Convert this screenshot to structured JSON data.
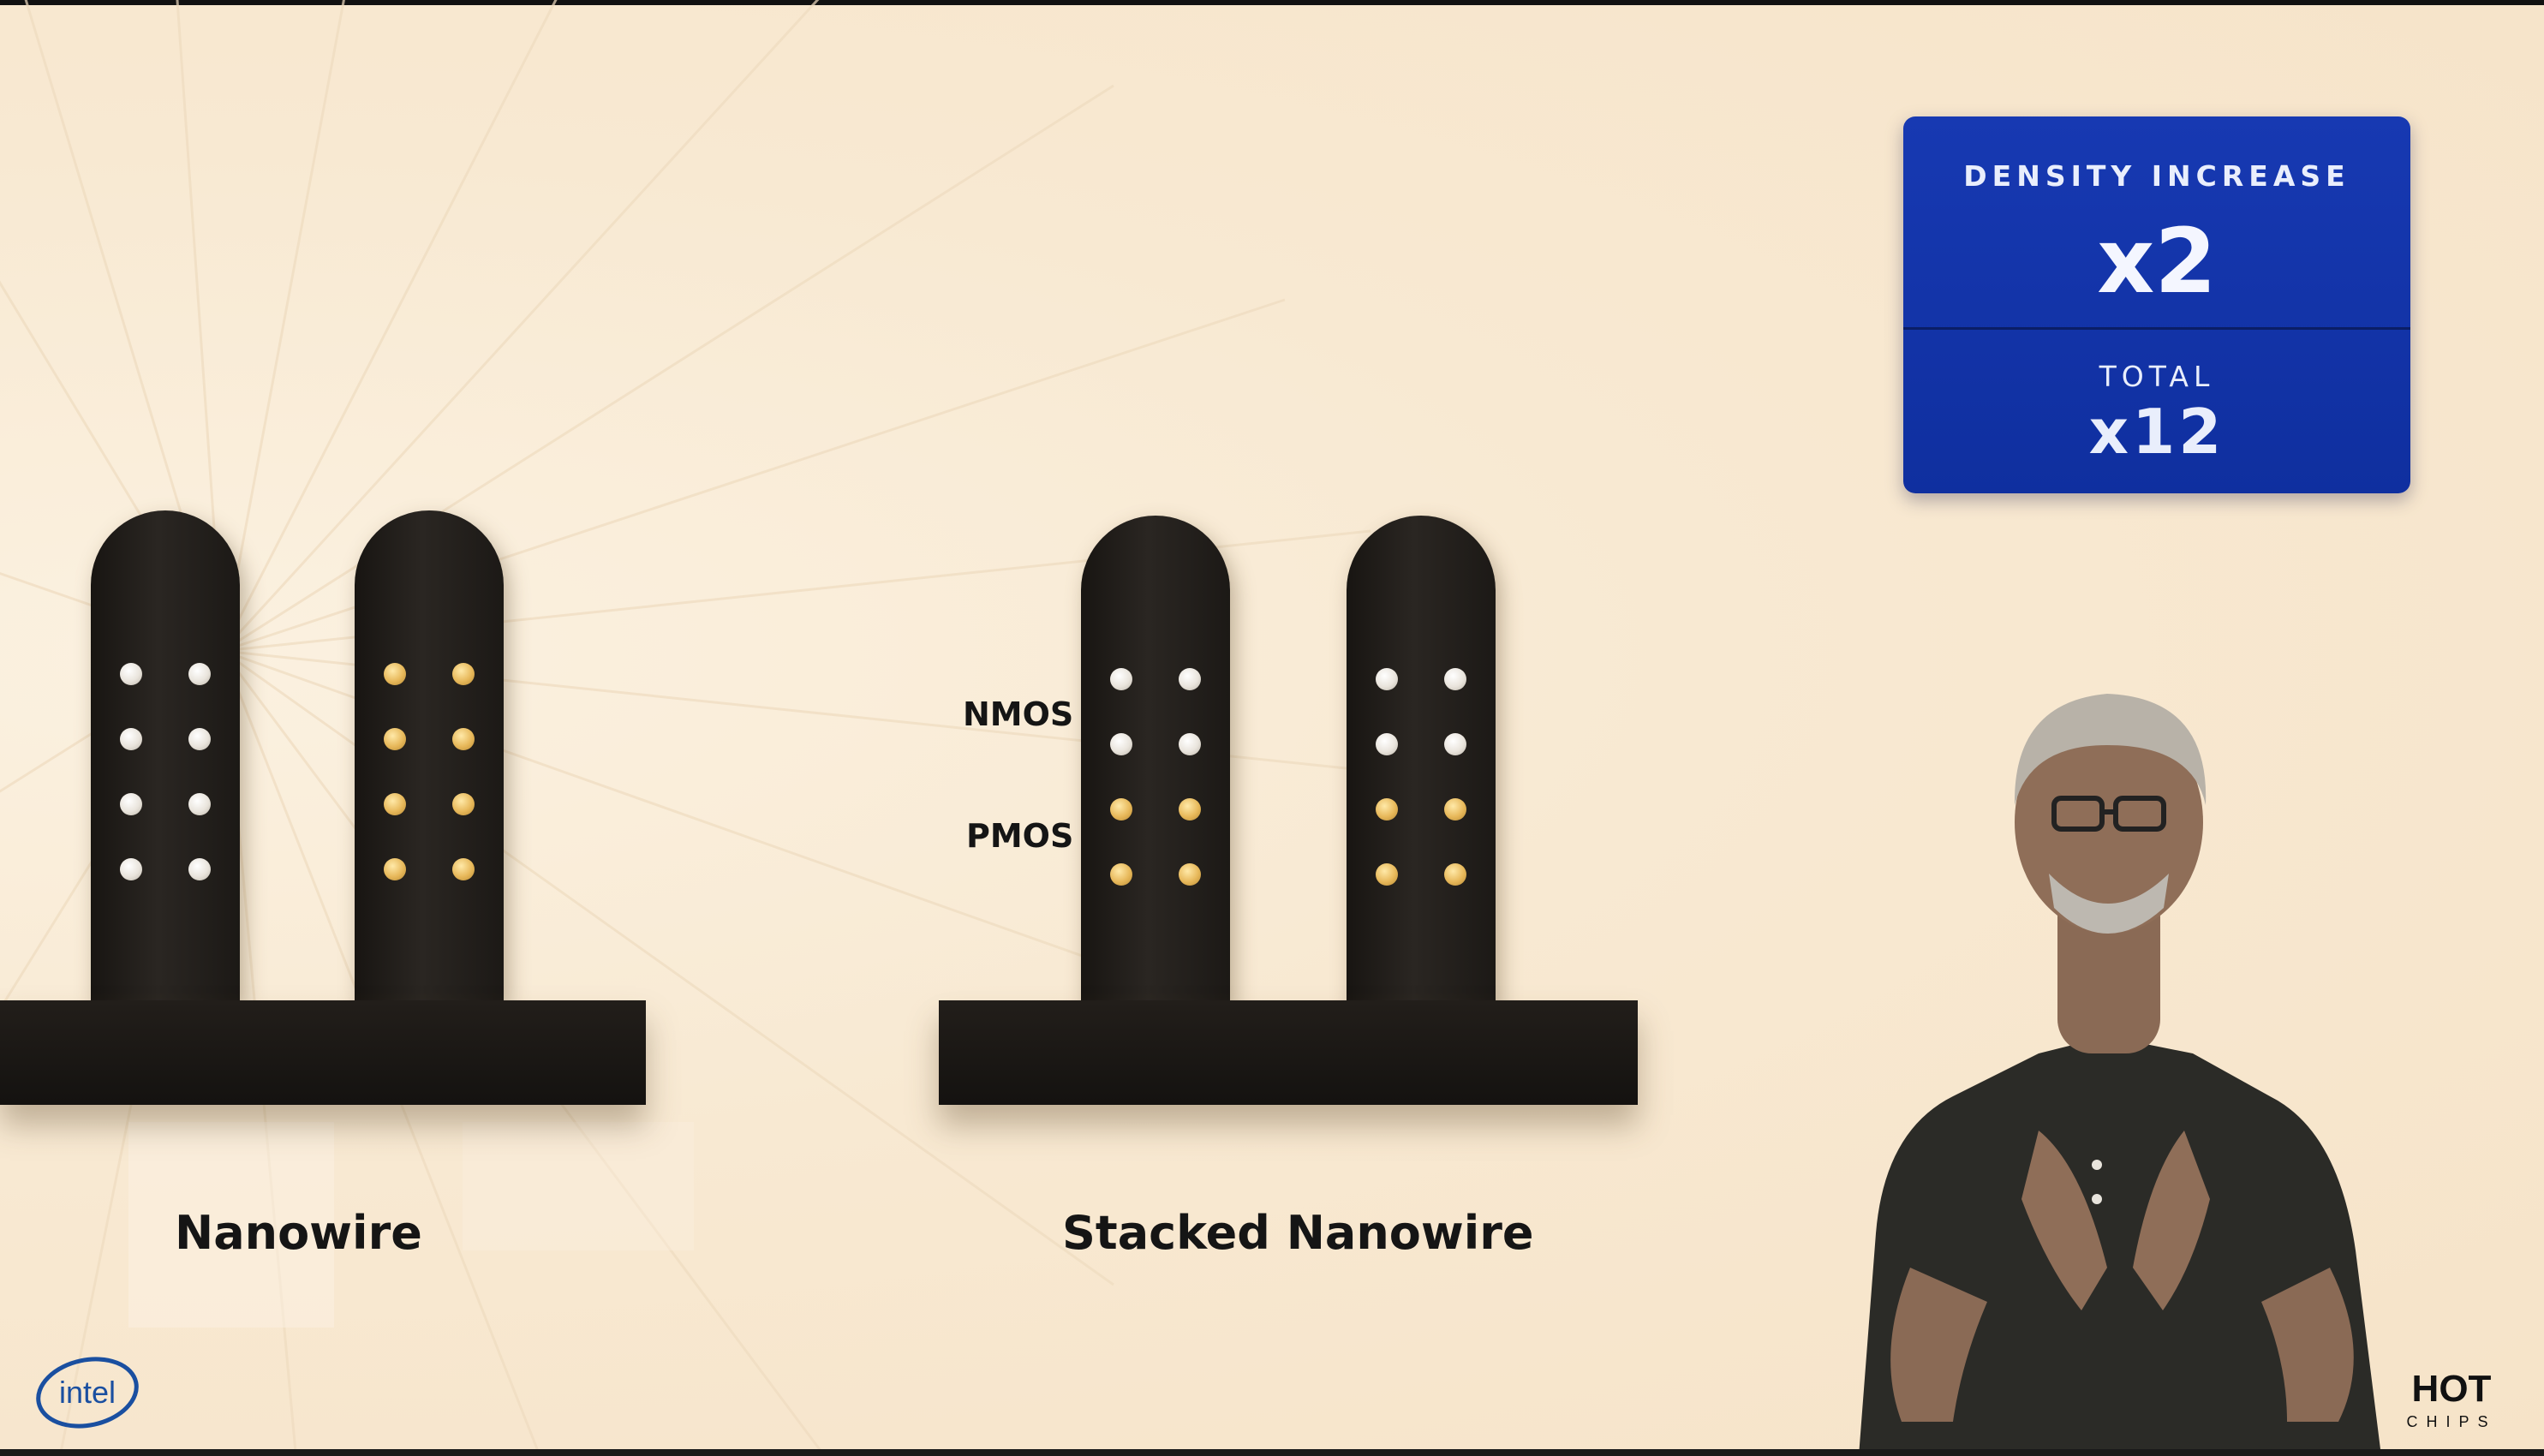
{
  "density_card": {
    "density_label": "DENSITY INCREASE",
    "density_value": "x2",
    "total_label": "TOTAL",
    "total_value": "x12",
    "color": "#1739b2"
  },
  "diagrams": {
    "left_caption": "Nanowire",
    "right_caption": "Stacked Nanowire",
    "nmos_label": "NMOS",
    "pmos_label": "PMOS"
  },
  "logos": {
    "intel": "intel",
    "hotchips_top": "HOT",
    "hotchips_bottom": "CHIPS"
  },
  "colors": {
    "background": "#f8e9d2",
    "fin": "#1f1b18",
    "nanowire_white": "#e9e4dc",
    "nanowire_gold": "#e7b85a",
    "card_blue": "#1739b2"
  }
}
